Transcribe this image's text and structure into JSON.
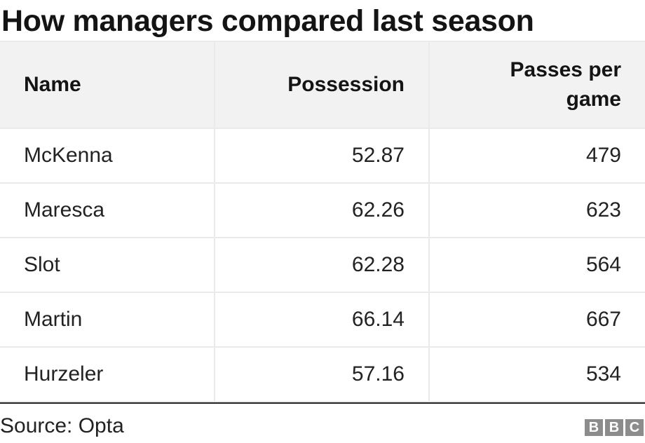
{
  "title": "How managers compared last season",
  "chart_data": {
    "type": "table",
    "columns": [
      "Name",
      "Possession",
      "Passes per game"
    ],
    "rows": [
      [
        "McKenna",
        "52.87",
        "479"
      ],
      [
        "Maresca",
        "62.26",
        "623"
      ],
      [
        "Slot",
        "62.28",
        "564"
      ],
      [
        "Martin",
        "66.14",
        "667"
      ],
      [
        "Hurzeler",
        "57.16",
        "534"
      ]
    ]
  },
  "footer": {
    "source": "Source: Opta",
    "logo_letters": [
      "B",
      "B",
      "C"
    ]
  },
  "colors": {
    "header_bg": "#f2f2f2",
    "grid": "#eaeaea",
    "logo": "#8c8c8c"
  }
}
